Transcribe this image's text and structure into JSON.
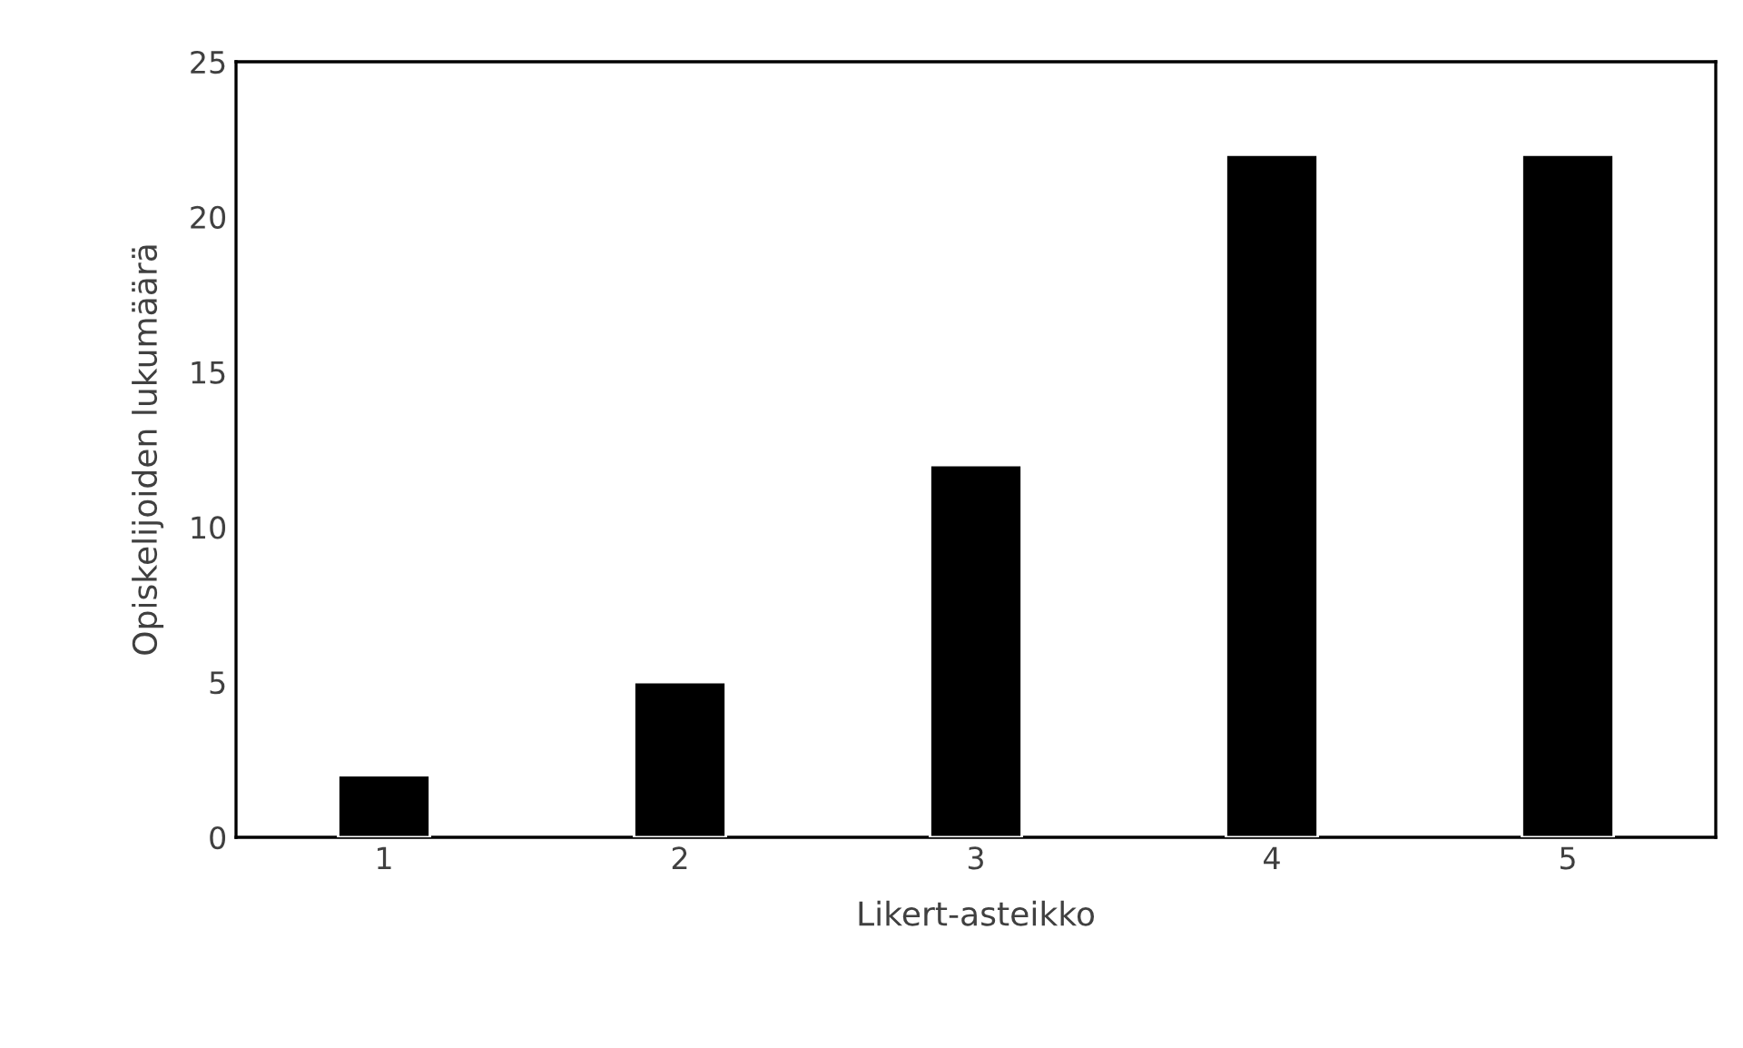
{
  "chart_data": {
    "type": "bar",
    "xlabel": "Likert-asteikko",
    "ylabel": "Opiskelijoiden lukumäärä",
    "categories": [
      "1",
      "2",
      "3",
      "4",
      "5"
    ],
    "values": [
      2,
      5,
      12,
      22,
      22
    ],
    "color": "#000000",
    "ylim": [
      0,
      25
    ],
    "yticks": [
      0,
      5,
      10,
      15,
      20,
      25
    ],
    "grid": false,
    "legend": false
  }
}
